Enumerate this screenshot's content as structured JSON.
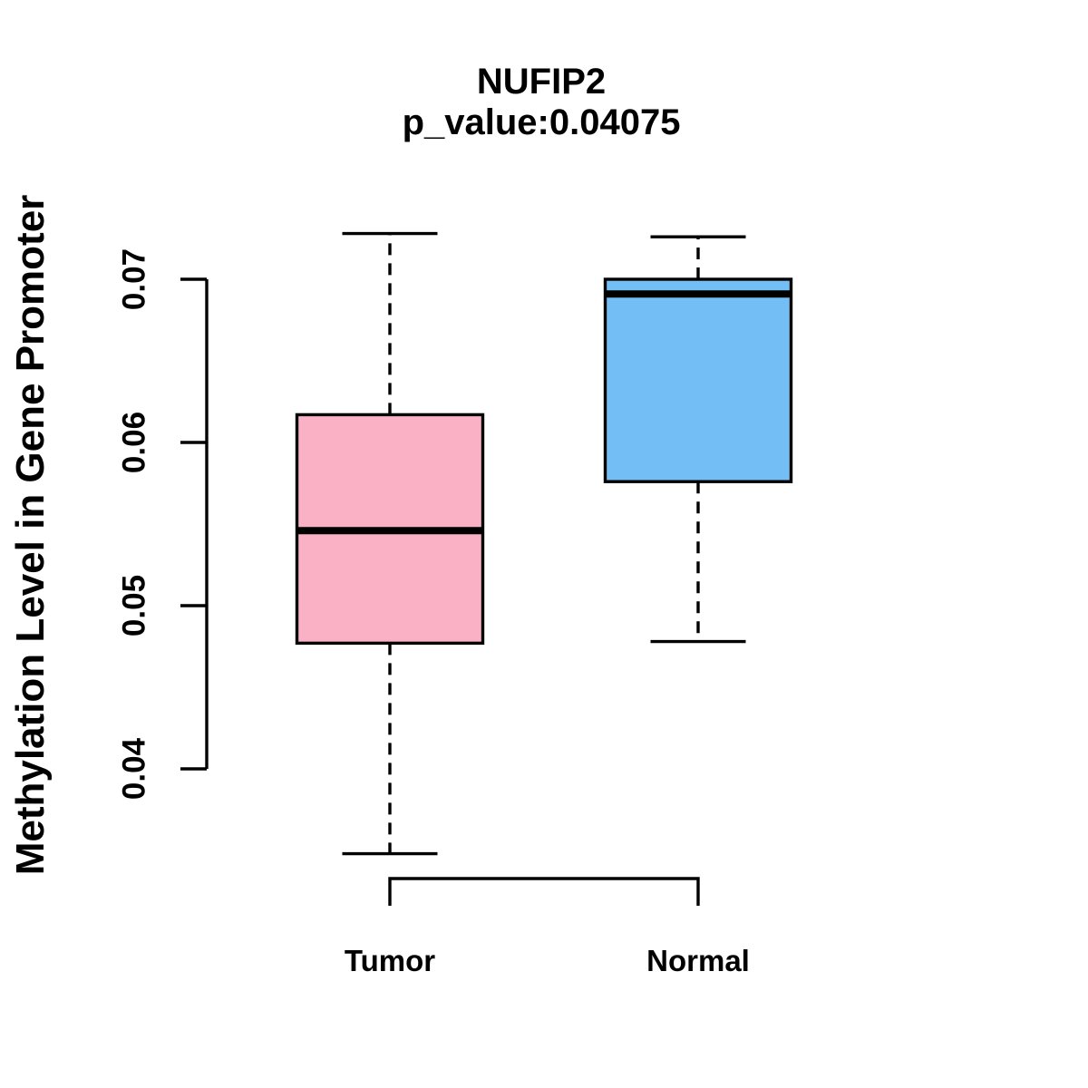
{
  "chart_data": {
    "type": "boxplot",
    "title": "NUFIP2",
    "subtitle": "p_value:0.04075",
    "p_value": 0.04075,
    "ylabel": "Methylation Level in Gene Promoter",
    "xlabel": "",
    "categories": [
      "Tumor",
      "Normal"
    ],
    "y_axis": {
      "ticks": [
        0.07,
        0.06,
        0.05,
        0.04
      ],
      "tick_labels": [
        "0.07",
        "0.06",
        "0.05",
        "0.04"
      ],
      "range_shown": [
        0.033,
        0.074
      ],
      "grid": false
    },
    "series": [
      {
        "name": "Tumor",
        "box_color": "#FBB1C5",
        "whisker_low": 0.0348,
        "q1": 0.0477,
        "median": 0.0546,
        "q3": 0.0617,
        "whisker_high": 0.0728
      },
      {
        "name": "Normal",
        "box_color": "#73BEF4",
        "whisker_low": 0.0478,
        "q1": 0.0576,
        "median": 0.0691,
        "q3": 0.07,
        "whisker_high": 0.0726
      }
    ],
    "line_color": "#000000",
    "whisker_style": "dashed",
    "legend": "none"
  }
}
